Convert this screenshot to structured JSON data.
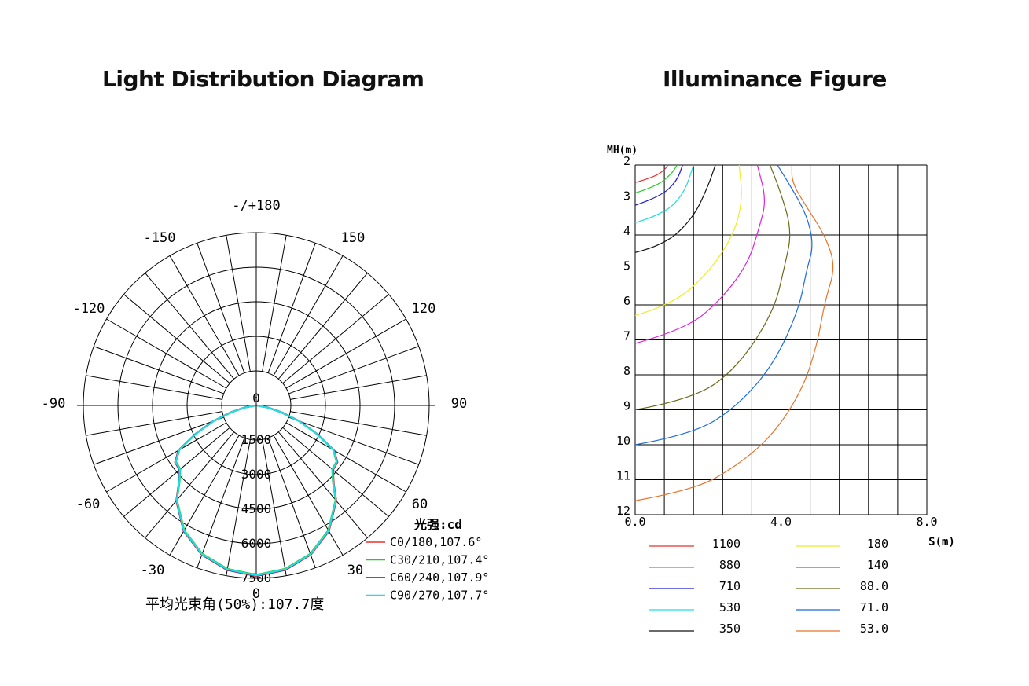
{
  "titles": {
    "left": "Light Distribution Diagram",
    "right": "Illuminance Figure"
  },
  "chart_data": [
    {
      "type": "polar",
      "title": "Light Distribution Diagram",
      "angle_labels": [
        {
          "angle": 180,
          "text": "-/+180"
        },
        {
          "angle": -150,
          "text": "-150"
        },
        {
          "angle": 150,
          "text": "150"
        },
        {
          "angle": -120,
          "text": "-120"
        },
        {
          "angle": 120,
          "text": "120"
        },
        {
          "angle": -90,
          "text": "-90"
        },
        {
          "angle": 90,
          "text": "90"
        },
        {
          "angle": -60,
          "text": "-60"
        },
        {
          "angle": 60,
          "text": "60"
        },
        {
          "angle": -30,
          "text": "-30"
        },
        {
          "angle": 30,
          "text": "30"
        },
        {
          "angle": 0,
          "text": "0"
        }
      ],
      "radial_ticks": [
        "0",
        "1500",
        "3000",
        "4500",
        "6000",
        "7500"
      ],
      "radial_max": 7500,
      "unit_label": "光强:cd",
      "beam_angle_label": "平均光束角(50%):107.7度",
      "angles": [
        0,
        10,
        20,
        30,
        40,
        45,
        50,
        55,
        60,
        65,
        70,
        75,
        80,
        90
      ],
      "series": [
        {
          "name": "C0/180,107.6°",
          "color": "#e53030",
          "values": [
            7400,
            7250,
            6900,
            6300,
            5400,
            4750,
            4350,
            4300,
            3900,
            2900,
            2000,
            1150,
            500,
            40
          ]
        },
        {
          "name": "C30/210,107.4°",
          "color": "#22cc22",
          "values": [
            7350,
            7200,
            6850,
            6250,
            5350,
            4700,
            4300,
            4250,
            3850,
            2850,
            1950,
            1100,
            480,
            40
          ]
        },
        {
          "name": "C60/240,107.9°",
          "color": "#1a1ad0",
          "values": [
            7380,
            7230,
            6880,
            6280,
            5380,
            4730,
            4330,
            4280,
            3880,
            2880,
            1980,
            1120,
            490,
            40
          ]
        },
        {
          "name": "C90/270,107.7°",
          "color": "#22dede",
          "values": [
            7370,
            7220,
            6870,
            6270,
            5370,
            4720,
            4320,
            4270,
            3870,
            2870,
            1970,
            1110,
            485,
            40
          ]
        }
      ]
    },
    {
      "type": "contour",
      "title": "Illuminance Figure",
      "ylabel": "MH(m)",
      "xlabel": "S(m)",
      "yticks": [
        "2",
        "3",
        "4",
        "5",
        "6",
        "7",
        "8",
        "9",
        "10",
        "11",
        "12"
      ],
      "xticks": [
        "0.0",
        "4.0",
        "8.0"
      ],
      "xlim": [
        0,
        8
      ],
      "ylim": [
        2,
        12
      ],
      "series": [
        {
          "name": "1100",
          "color": "#e53030",
          "points": [
            [
              0,
              2.5
            ],
            [
              0.5,
              2.35
            ],
            [
              0.8,
              2.15
            ],
            [
              0.9,
              2
            ]
          ]
        },
        {
          "name": "880",
          "color": "#22cc22",
          "points": [
            [
              0,
              2.8
            ],
            [
              0.6,
              2.6
            ],
            [
              1.0,
              2.25
            ],
            [
              1.15,
              2
            ]
          ]
        },
        {
          "name": "710",
          "color": "#1a1ad0",
          "points": [
            [
              0,
              3.15
            ],
            [
              0.7,
              2.9
            ],
            [
              1.15,
              2.45
            ],
            [
              1.3,
              2
            ]
          ]
        },
        {
          "name": "530",
          "color": "#22dede",
          "points": [
            [
              0,
              3.65
            ],
            [
              0.8,
              3.4
            ],
            [
              1.35,
              2.8
            ],
            [
              1.6,
              2
            ]
          ]
        },
        {
          "name": "350",
          "color": "#111111",
          "points": [
            [
              0,
              4.5
            ],
            [
              0.8,
              4.3
            ],
            [
              1.6,
              3.5
            ],
            [
              2.0,
              2.6
            ],
            [
              2.2,
              2
            ]
          ]
        },
        {
          "name": "180",
          "color": "#eeee22",
          "points": [
            [
              0,
              6.3
            ],
            [
              1.0,
              6.0
            ],
            [
              2.0,
              5.1
            ],
            [
              2.7,
              4.0
            ],
            [
              2.95,
              3.0
            ],
            [
              2.85,
              2
            ]
          ]
        },
        {
          "name": "140",
          "color": "#dd22dd",
          "points": [
            [
              0,
              7.1
            ],
            [
              1.4,
              6.7
            ],
            [
              2.4,
              5.8
            ],
            [
              3.1,
              4.8
            ],
            [
              3.4,
              3.8
            ],
            [
              3.6,
              3.0
            ],
            [
              3.35,
              2
            ]
          ]
        },
        {
          "name": "88.0",
          "color": "#6b6b18",
          "points": [
            [
              0,
              9.0
            ],
            [
              1.6,
              8.7
            ],
            [
              2.8,
              7.8
            ],
            [
              3.8,
              6.2
            ],
            [
              4.1,
              4.9
            ],
            [
              4.3,
              3.9
            ],
            [
              4.0,
              2.8
            ],
            [
              3.7,
              2
            ]
          ]
        },
        {
          "name": "71.0",
          "color": "#1a6be0",
          "points": [
            [
              0,
              10.0
            ],
            [
              1.6,
              9.7
            ],
            [
              2.8,
              8.9
            ],
            [
              3.8,
              7.7
            ],
            [
              4.5,
              6.1
            ],
            [
              4.7,
              5.0
            ],
            [
              4.9,
              4.3
            ],
            [
              4.7,
              3.4
            ],
            [
              4.2,
              2.5
            ],
            [
              3.9,
              2
            ]
          ]
        },
        {
          "name": "53.0",
          "color": "#e8732a",
          "points": [
            [
              0,
              11.6
            ],
            [
              1.6,
              11.3
            ],
            [
              2.8,
              10.6
            ],
            [
              3.8,
              9.7
            ],
            [
              4.6,
              8.4
            ],
            [
              5.0,
              7.1
            ],
            [
              5.2,
              5.9
            ],
            [
              5.5,
              4.9
            ],
            [
              5.2,
              4.0
            ],
            [
              4.7,
              3.2
            ],
            [
              4.3,
              2.5
            ],
            [
              4.3,
              2
            ]
          ]
        }
      ]
    }
  ]
}
